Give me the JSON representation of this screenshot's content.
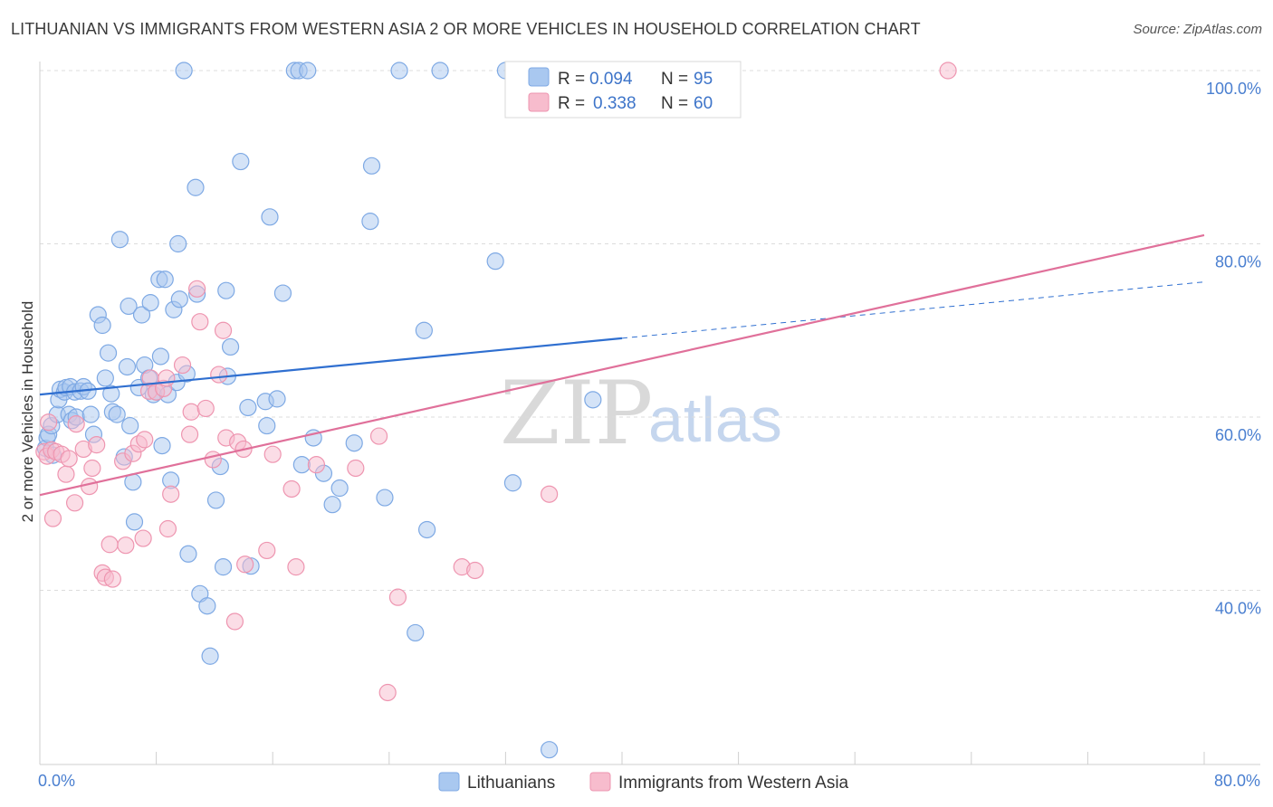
{
  "title": "LITHUANIAN VS IMMIGRANTS FROM WESTERN ASIA 2 OR MORE VEHICLES IN HOUSEHOLD CORRELATION CHART",
  "source": "Source: ZipAtlas.com",
  "watermark": {
    "zip": "ZIP",
    "atlas": "atlas"
  },
  "colors": {
    "blue_fill": "#a9c8f0",
    "blue_stroke": "#7ea9e4",
    "blue_line": "#2f6fd0",
    "pink_fill": "#f7bccd",
    "pink_stroke": "#ee95b0",
    "pink_line": "#e0709a",
    "grid": "#dcdcdc",
    "axis_label": "#4a7fd0"
  },
  "legend": {
    "rows": [
      {
        "r_label": "R = ",
        "r_value": "0.094",
        "n_label": "N = ",
        "n_value": "95"
      },
      {
        "r_label": "R = ",
        "r_value": "0.338",
        "n_label": "N = ",
        "n_value": "60"
      }
    ]
  },
  "bottom_legend": [
    "Lithuanians",
    "Immigrants from Western Asia"
  ],
  "chart_data": {
    "type": "scatter",
    "title": "LITHUANIAN VS IMMIGRANTS FROM WESTERN ASIA 2 OR MORE VEHICLES IN HOUSEHOLD CORRELATION CHART",
    "xlabel": "",
    "ylabel": "2 or more Vehicles in Household",
    "xlim": [
      0,
      80
    ],
    "ylim": [
      20,
      100
    ],
    "x_tick_labels": [
      "0.0%",
      "80.0%"
    ],
    "y_ticks": [
      40,
      60,
      80,
      100
    ],
    "y_tick_labels": [
      "40.0%",
      "60.0%",
      "80.0%",
      "100.0%"
    ],
    "grid": true,
    "legend_position": "top-center",
    "series": [
      {
        "name": "Lithuanians",
        "r": 0.094,
        "n": 95,
        "trend": {
          "x0": 0,
          "y0": 62.6,
          "x1": 40,
          "y1": 69.1,
          "dashed_to_x": 80,
          "dashed_to_y": 75.6
        },
        "points": [
          [
            0.4,
            56.4
          ],
          [
            0.5,
            57.6
          ],
          [
            0.6,
            58.0
          ],
          [
            0.8,
            59.0
          ],
          [
            0.9,
            55.6
          ],
          [
            1.2,
            60.3
          ],
          [
            1.3,
            62.0
          ],
          [
            1.4,
            63.2
          ],
          [
            1.7,
            62.9
          ],
          [
            1.8,
            63.4
          ],
          [
            2.0,
            60.3
          ],
          [
            2.1,
            63.5
          ],
          [
            2.2,
            59.6
          ],
          [
            2.4,
            62.9
          ],
          [
            2.5,
            60.0
          ],
          [
            2.8,
            63.0
          ],
          [
            3.0,
            63.5
          ],
          [
            3.3,
            63.0
          ],
          [
            3.5,
            60.3
          ],
          [
            3.7,
            58.0
          ],
          [
            4.0,
            71.8
          ],
          [
            4.3,
            70.6
          ],
          [
            4.5,
            64.5
          ],
          [
            4.7,
            67.4
          ],
          [
            4.9,
            62.7
          ],
          [
            5.0,
            60.6
          ],
          [
            5.3,
            60.3
          ],
          [
            5.5,
            80.5
          ],
          [
            5.8,
            55.4
          ],
          [
            6.0,
            65.8
          ],
          [
            6.1,
            72.8
          ],
          [
            6.2,
            59.0
          ],
          [
            6.4,
            52.5
          ],
          [
            6.5,
            47.9
          ],
          [
            6.8,
            63.4
          ],
          [
            7.0,
            71.8
          ],
          [
            7.2,
            66.0
          ],
          [
            7.5,
            64.5
          ],
          [
            7.6,
            73.2
          ],
          [
            7.8,
            62.6
          ],
          [
            8.0,
            62.9
          ],
          [
            8.2,
            75.9
          ],
          [
            8.3,
            67.0
          ],
          [
            8.4,
            56.7
          ],
          [
            8.6,
            75.9
          ],
          [
            8.8,
            62.6
          ],
          [
            9.0,
            52.7
          ],
          [
            9.2,
            72.4
          ],
          [
            9.4,
            64.0
          ],
          [
            9.5,
            80.0
          ],
          [
            9.6,
            73.6
          ],
          [
            9.9,
            100.0
          ],
          [
            10.1,
            65.0
          ],
          [
            10.2,
            44.2
          ],
          [
            10.7,
            86.5
          ],
          [
            10.8,
            74.2
          ],
          [
            11.0,
            39.6
          ],
          [
            11.5,
            38.2
          ],
          [
            11.7,
            32.4
          ],
          [
            12.1,
            50.4
          ],
          [
            12.4,
            54.3
          ],
          [
            12.6,
            42.7
          ],
          [
            12.8,
            74.6
          ],
          [
            12.9,
            64.7
          ],
          [
            13.1,
            68.1
          ],
          [
            13.8,
            89.5
          ],
          [
            14.3,
            61.1
          ],
          [
            14.5,
            42.8
          ],
          [
            15.5,
            61.8
          ],
          [
            15.6,
            59.0
          ],
          [
            15.8,
            83.1
          ],
          [
            16.3,
            62.1
          ],
          [
            16.7,
            74.3
          ],
          [
            17.5,
            100.0
          ],
          [
            17.8,
            100.0
          ],
          [
            18.0,
            54.5
          ],
          [
            18.4,
            100.0
          ],
          [
            18.8,
            57.6
          ],
          [
            19.5,
            53.5
          ],
          [
            20.1,
            49.9
          ],
          [
            20.6,
            51.8
          ],
          [
            21.6,
            57.0
          ],
          [
            22.7,
            82.6
          ],
          [
            22.8,
            89.0
          ],
          [
            23.7,
            50.7
          ],
          [
            24.7,
            100.0
          ],
          [
            25.8,
            35.1
          ],
          [
            26.4,
            70.0
          ],
          [
            26.6,
            47.0
          ],
          [
            27.5,
            100.0
          ],
          [
            31.3,
            78.0
          ],
          [
            32.0,
            100.0
          ],
          [
            32.5,
            52.4
          ],
          [
            35.0,
            21.6
          ],
          [
            38.0,
            62.0
          ]
        ]
      },
      {
        "name": "Immigrants from Western Asia",
        "r": 0.338,
        "n": 60,
        "trend": {
          "x0": 0,
          "y0": 51.0,
          "x1": 80,
          "y1": 81.0
        },
        "points": [
          [
            0.3,
            56.0
          ],
          [
            0.5,
            55.5
          ],
          [
            0.6,
            59.4
          ],
          [
            0.8,
            56.2
          ],
          [
            0.9,
            48.3
          ],
          [
            1.1,
            56.0
          ],
          [
            1.5,
            55.7
          ],
          [
            1.8,
            53.4
          ],
          [
            2.0,
            55.2
          ],
          [
            2.4,
            50.1
          ],
          [
            2.5,
            59.2
          ],
          [
            3.0,
            56.3
          ],
          [
            3.4,
            52.0
          ],
          [
            3.6,
            54.1
          ],
          [
            3.9,
            56.8
          ],
          [
            4.3,
            42.0
          ],
          [
            4.5,
            41.5
          ],
          [
            4.8,
            45.3
          ],
          [
            5.0,
            41.3
          ],
          [
            5.7,
            54.9
          ],
          [
            5.9,
            45.2
          ],
          [
            6.4,
            55.8
          ],
          [
            6.8,
            56.9
          ],
          [
            7.1,
            46.0
          ],
          [
            7.2,
            57.4
          ],
          [
            7.5,
            63.0
          ],
          [
            7.6,
            64.5
          ],
          [
            8.0,
            62.9
          ],
          [
            8.5,
            63.3
          ],
          [
            8.7,
            64.5
          ],
          [
            8.8,
            47.1
          ],
          [
            9.0,
            51.1
          ],
          [
            9.8,
            66.0
          ],
          [
            10.3,
            58.0
          ],
          [
            10.4,
            60.6
          ],
          [
            10.8,
            74.8
          ],
          [
            11.0,
            71.0
          ],
          [
            11.4,
            61.0
          ],
          [
            11.9,
            55.1
          ],
          [
            12.3,
            64.9
          ],
          [
            12.6,
            70.0
          ],
          [
            12.8,
            57.6
          ],
          [
            13.4,
            36.4
          ],
          [
            13.6,
            57.1
          ],
          [
            14.0,
            56.3
          ],
          [
            14.1,
            43.0
          ],
          [
            15.6,
            44.6
          ],
          [
            16.0,
            55.7
          ],
          [
            17.3,
            51.7
          ],
          [
            17.6,
            42.7
          ],
          [
            19.0,
            54.5
          ],
          [
            21.7,
            54.1
          ],
          [
            23.3,
            57.8
          ],
          [
            23.9,
            28.2
          ],
          [
            24.6,
            39.2
          ],
          [
            29.0,
            42.7
          ],
          [
            29.9,
            42.3
          ],
          [
            35.0,
            51.1
          ],
          [
            43.0,
            100.0
          ],
          [
            62.4,
            100.0
          ]
        ]
      }
    ]
  }
}
